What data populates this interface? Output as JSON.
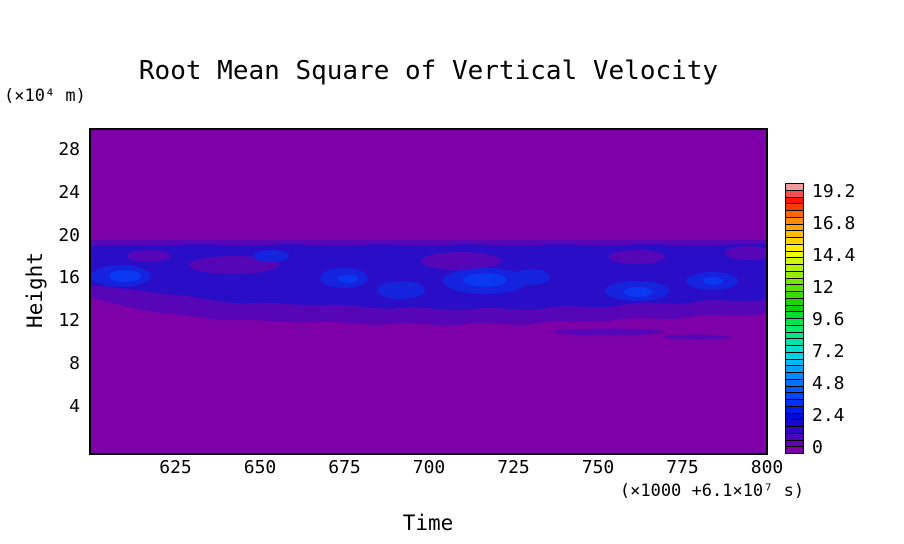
{
  "title": "Root Mean Square of Vertical Velocity",
  "y_axis": {
    "label": "Height",
    "unit": "(×10⁴ m)",
    "ticks": [
      "28",
      "24",
      "20",
      "16",
      "12",
      "8",
      "4"
    ]
  },
  "x_axis": {
    "label": "Time",
    "unit": "(×1000 +6.1×10⁷ s)",
    "ticks": [
      "625",
      "650",
      "675",
      "700",
      "725",
      "750",
      "775",
      "800"
    ]
  },
  "colorbar": {
    "tick_labels_top_to_bottom": [
      "19.2",
      "16.8",
      "14.4",
      "12",
      "9.6",
      "7.2",
      "4.8",
      "2.4",
      "0"
    ],
    "segment_colors_bottom_to_top": [
      "#7B00A8",
      "#6202B2",
      "#4A04BC",
      "#3106C6",
      "#1908D0",
      "#000ADA",
      "#001EE8",
      "#0032F6",
      "#0046FF",
      "#005AFF",
      "#0072FF",
      "#008AFF",
      "#00A2FB",
      "#00BAF2",
      "#00D2E8",
      "#00DECC",
      "#00E2AC",
      "#00E68C",
      "#00EA6C",
      "#00E54C",
      "#00DC2C",
      "#06D30C",
      "#1ED400",
      "#3CDA00",
      "#5AE000",
      "#78E600",
      "#96EC00",
      "#B4F200",
      "#D2F800",
      "#F0FE00",
      "#FFEC00",
      "#FFD400",
      "#FFBC00",
      "#FFA400",
      "#FF8C00",
      "#FF6400",
      "#FF3C00",
      "#FF1400",
      "#F25050",
      "#F29A9A"
    ]
  },
  "plot": {
    "colors": {
      "background": "#7E00A8",
      "level1_violet": "#5606B6",
      "level2_navy": "#2A0DC6",
      "level3_blue": "#1523DE",
      "level4_bright": "#0A38F2",
      "border": "#000000"
    }
  },
  "chart_data": {
    "type": "heatmap",
    "title": "Root Mean Square of Vertical Velocity",
    "xlabel": "Time",
    "x_unit": "(×1000 +6.1×10⁷ s)",
    "ylabel": "Height",
    "y_unit": "(×10⁴ m)",
    "x_range": [
      600,
      800
    ],
    "x_ticks": [
      625,
      650,
      675,
      700,
      725,
      750,
      775,
      800
    ],
    "y_range": [
      0,
      30
    ],
    "y_ticks": [
      4,
      8,
      12,
      16,
      20,
      24,
      28
    ],
    "colorbar_range": [
      0,
      20
    ],
    "colorbar_ticks": [
      0,
      2.4,
      4.8,
      7.2,
      9.6,
      12,
      14.4,
      16.8,
      19.2
    ],
    "legend_position": "right",
    "grid": false,
    "description": "Field is ~0 (lowest purple contour level) over nearly the whole domain; a horizontal band of elevated RMS vertical velocity (roughly 0.5–2.5, dark violet to bright blue contour levels) spans all times between heights ~12 and ~20 (×10⁴ m), with the sharpest edge at height 20 and scattered brighter-blue maxima near heights 14–17 around times ~635, ~690–710, ~745 and ~775; faint violet streaks appear near height ~11 around times 745–775."
  }
}
